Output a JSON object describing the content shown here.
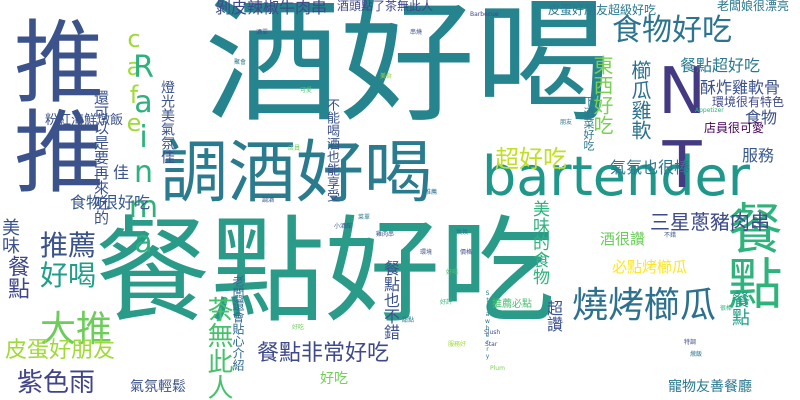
{
  "words": [
    {
      "text": "酒好喝",
      "color": "#25848e"
    },
    {
      "text": "餐點好吃",
      "color": "#2a9a89"
    },
    {
      "text": "推推",
      "color": "#3b528b"
    },
    {
      "text": "調酒好喝",
      "color": "#2a7b8e"
    },
    {
      "text": "bartender",
      "color": "#1f978b"
    },
    {
      "text": "餐點",
      "color": "#2eb37c"
    },
    {
      "text": "NT",
      "color": "#443a83"
    },
    {
      "text": "食物好吃",
      "color": "#2c738e"
    },
    {
      "text": "cafe",
      "color": "#a0da39"
    },
    {
      "text": "Rainma",
      "color": "#2db27d"
    },
    {
      "text": "燒烤櫛瓜",
      "color": "#2d718e"
    },
    {
      "text": "大推",
      "color": "#6ccd5a"
    },
    {
      "text": "推薦",
      "color": "#3b528b"
    },
    {
      "text": "好喝",
      "color": "#1f9e89"
    },
    {
      "text": "紫色雨",
      "color": "#414487"
    },
    {
      "text": "皮蛋好朋友",
      "color": "#a0da39"
    },
    {
      "text": "餐點非常好吃",
      "color": "#3e4989"
    },
    {
      "text": "茶無此人",
      "color": "#48c16e"
    },
    {
      "text": "餐點",
      "color": "#3f4788"
    },
    {
      "text": "超好吃",
      "color": "#c2df23"
    },
    {
      "text": "三星蔥豬肉串",
      "color": "#3e4a89"
    },
    {
      "text": "剝皮辣椒牛肉串",
      "color": "#3e4a89"
    },
    {
      "text": "東西好吃",
      "color": "#7ad151"
    },
    {
      "text": "櫛瓜雞軟",
      "color": "#2c728e"
    },
    {
      "text": "氣氛也很棒",
      "color": "#2a788e"
    },
    {
      "text": "餐點超好吃",
      "color": "#2a788e"
    },
    {
      "text": "酥炸雞軟骨",
      "color": "#3b528b"
    },
    {
      "text": "食物",
      "color": "#3b528b"
    },
    {
      "text": "店員很可愛",
      "color": "#440154"
    },
    {
      "text": "服務",
      "color": "#38598c"
    },
    {
      "text": "美味的食物",
      "color": "#2db27d"
    },
    {
      "text": "必點烤櫛瓜",
      "color": "#fde725"
    },
    {
      "text": "酒很讚",
      "color": "#6ccd5a"
    },
    {
      "text": "超讚",
      "color": "#3b528b"
    },
    {
      "text": "餐點也不錯",
      "color": "#3b528b"
    },
    {
      "text": "寵物友善餐廳",
      "color": "#2a788e"
    },
    {
      "text": "食物很好吃",
      "color": "#38598c"
    },
    {
      "text": "氣氛輕鬆",
      "color": "#3b528b"
    },
    {
      "text": "好吃",
      "color": "#73d056"
    },
    {
      "text": "美味",
      "color": "#3b528b"
    },
    {
      "text": "餐點",
      "color": "#1f9e89"
    },
    {
      "text": "酒頭點了茶無此人",
      "color": "#3f4788"
    },
    {
      "text": "皮蛋好朋友超級好吃",
      "color": "#2a788e"
    },
    {
      "text": "老闆娘很漂亮",
      "color": "#2a788e"
    },
    {
      "text": "環境很有特色",
      "color": "#3e4989"
    },
    {
      "text": "佳",
      "color": "#3b528b"
    },
    {
      "text": "粉紅海鮮燉飯",
      "color": "#3b528b"
    },
    {
      "text": "還可以是要再來吃的",
      "color": "#3b528b"
    },
    {
      "text": "燈光美氣氛佳",
      "color": "#3b528b"
    },
    {
      "text": "不能喝酒也能享受",
      "color": "#3b528b"
    },
    {
      "text": "老闆還會貼心介紹",
      "color": "#31688e"
    },
    {
      "text": "下酒菜好吃",
      "color": "#2a788e"
    },
    {
      "text": "推薦必點",
      "color": "#48c16e"
    }
  ],
  "tiny_words": [
    {
      "text": "Strawberry",
      "color": "#2a788e"
    },
    {
      "text": "Slush",
      "color": "#3b528b"
    },
    {
      "text": "Plum",
      "color": "#7ad151"
    },
    {
      "text": "Star",
      "color": "#3b528b"
    },
    {
      "text": "Appetizer",
      "color": "#2db27d"
    },
    {
      "text": "Barbecue",
      "color": "#3e4989"
    },
    {
      "text": "調酒",
      "color": "#3b528b"
    },
    {
      "text": "菜單",
      "color": "#2a788e"
    },
    {
      "text": "好吃",
      "color": "#6ccd5a"
    },
    {
      "text": "環境",
      "color": "#3b528b"
    },
    {
      "text": "推薦",
      "color": "#2a788e"
    },
    {
      "text": "好喝",
      "color": "#48c16e"
    },
    {
      "text": "小酒館",
      "color": "#3b528b"
    },
    {
      "text": "氣氛",
      "color": "#2a788e"
    },
    {
      "text": "價格",
      "color": "#3e4989"
    },
    {
      "text": "服務好",
      "color": "#a0da39"
    },
    {
      "text": "好評",
      "color": "#2db27d"
    },
    {
      "text": "雞肉串",
      "color": "#3b528b"
    },
    {
      "text": "甜點",
      "color": "#2a788e"
    },
    {
      "text": "店員",
      "color": "#6ccd5a"
    },
    {
      "text": "不錯",
      "color": "#3b528b"
    },
    {
      "text": "燉飯",
      "color": "#2a788e"
    },
    {
      "text": "特調",
      "color": "#3e4989"
    },
    {
      "text": "很棒",
      "color": "#2db27d"
    },
    {
      "text": "酒單",
      "color": "#3b528b"
    },
    {
      "text": "聚會",
      "color": "#2a788e"
    },
    {
      "text": "可愛",
      "color": "#48c16e"
    },
    {
      "text": "串燒",
      "color": "#3b528b"
    },
    {
      "text": "美食",
      "color": "#a0da39"
    },
    {
      "text": "朋友",
      "color": "#2a788e"
    }
  ]
}
